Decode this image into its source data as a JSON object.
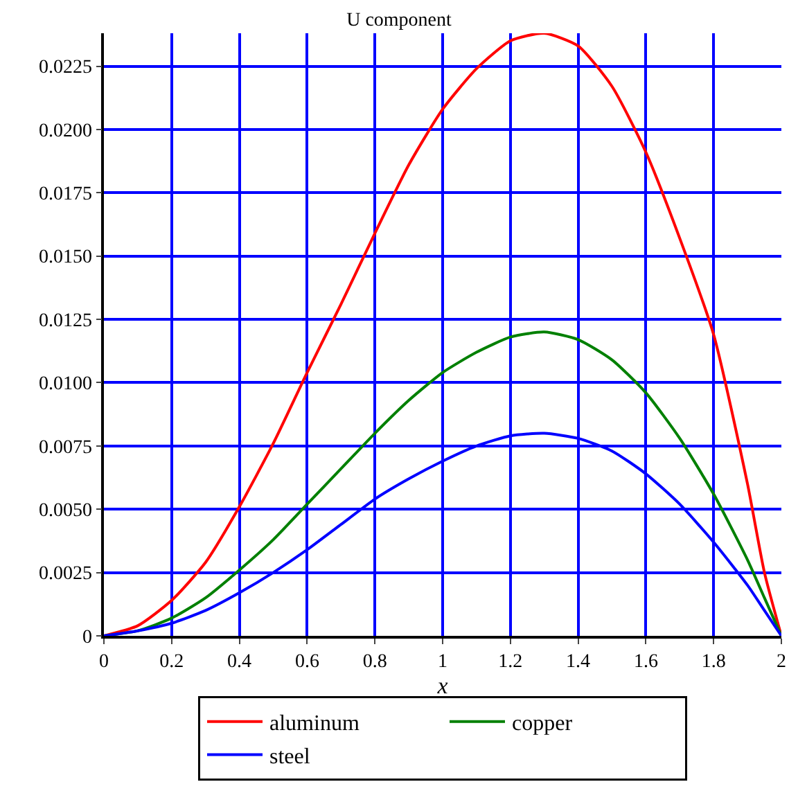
{
  "chart_data": {
    "type": "line",
    "title": "U component",
    "xlabel": "x",
    "x": [
      0,
      0.1,
      0.2,
      0.3,
      0.4,
      0.5,
      0.6,
      0.7,
      0.8,
      0.9,
      1.0,
      1.1,
      1.2,
      1.3,
      1.4,
      1.5,
      1.6,
      1.7,
      1.8,
      1.9,
      1.95,
      2.0
    ],
    "series": [
      {
        "name": "aluminum",
        "color": "#ff0000",
        "values": [
          0,
          0.0004,
          0.0014,
          0.0029,
          0.0051,
          0.0076,
          0.0104,
          0.0131,
          0.0159,
          0.0186,
          0.0208,
          0.0224,
          0.0235,
          0.0238,
          0.0233,
          0.0217,
          0.0191,
          0.0157,
          0.0119,
          0.006,
          0.0025,
          0
        ]
      },
      {
        "name": "copper",
        "color": "#008000",
        "values": [
          0,
          0.0002,
          0.0007,
          0.0015,
          0.0026,
          0.0038,
          0.0052,
          0.0066,
          0.008,
          0.0093,
          0.0104,
          0.0112,
          0.0118,
          0.012,
          0.0117,
          0.0109,
          0.0096,
          0.0078,
          0.0056,
          0.003,
          0.0015,
          0
        ]
      },
      {
        "name": "steel",
        "color": "#0000ff",
        "values": [
          0,
          0.0002,
          0.0005,
          0.001,
          0.0017,
          0.0025,
          0.0034,
          0.0044,
          0.0054,
          0.0062,
          0.0069,
          0.0075,
          0.0079,
          0.008,
          0.0078,
          0.0073,
          0.0064,
          0.0052,
          0.0037,
          0.002,
          0.001,
          0
        ]
      }
    ],
    "xlim": [
      0,
      2
    ],
    "xticks": [
      0,
      0.2,
      0.4,
      0.6,
      0.8,
      1,
      1.2,
      1.4,
      1.6,
      1.8,
      2
    ],
    "ylim": [
      0,
      0.0238
    ],
    "yticks": [
      0,
      {
        "value": 0.0025,
        "label": "0.0025"
      },
      {
        "value": 0.005,
        "label": "0.0050"
      },
      {
        "value": 0.0075,
        "label": "0.0075"
      },
      {
        "value": 0.01,
        "label": "0.0100"
      },
      {
        "value": 0.0125,
        "label": "0.0125"
      },
      {
        "value": 0.015,
        "label": "0.0150"
      },
      {
        "value": 0.0175,
        "label": "0.0175"
      },
      {
        "value": 0.02,
        "label": "0.0200"
      },
      {
        "value": 0.0225,
        "label": "0.0225"
      }
    ],
    "grid": true,
    "legend": "bottom",
    "marker": "none",
    "line_style": "solid"
  }
}
